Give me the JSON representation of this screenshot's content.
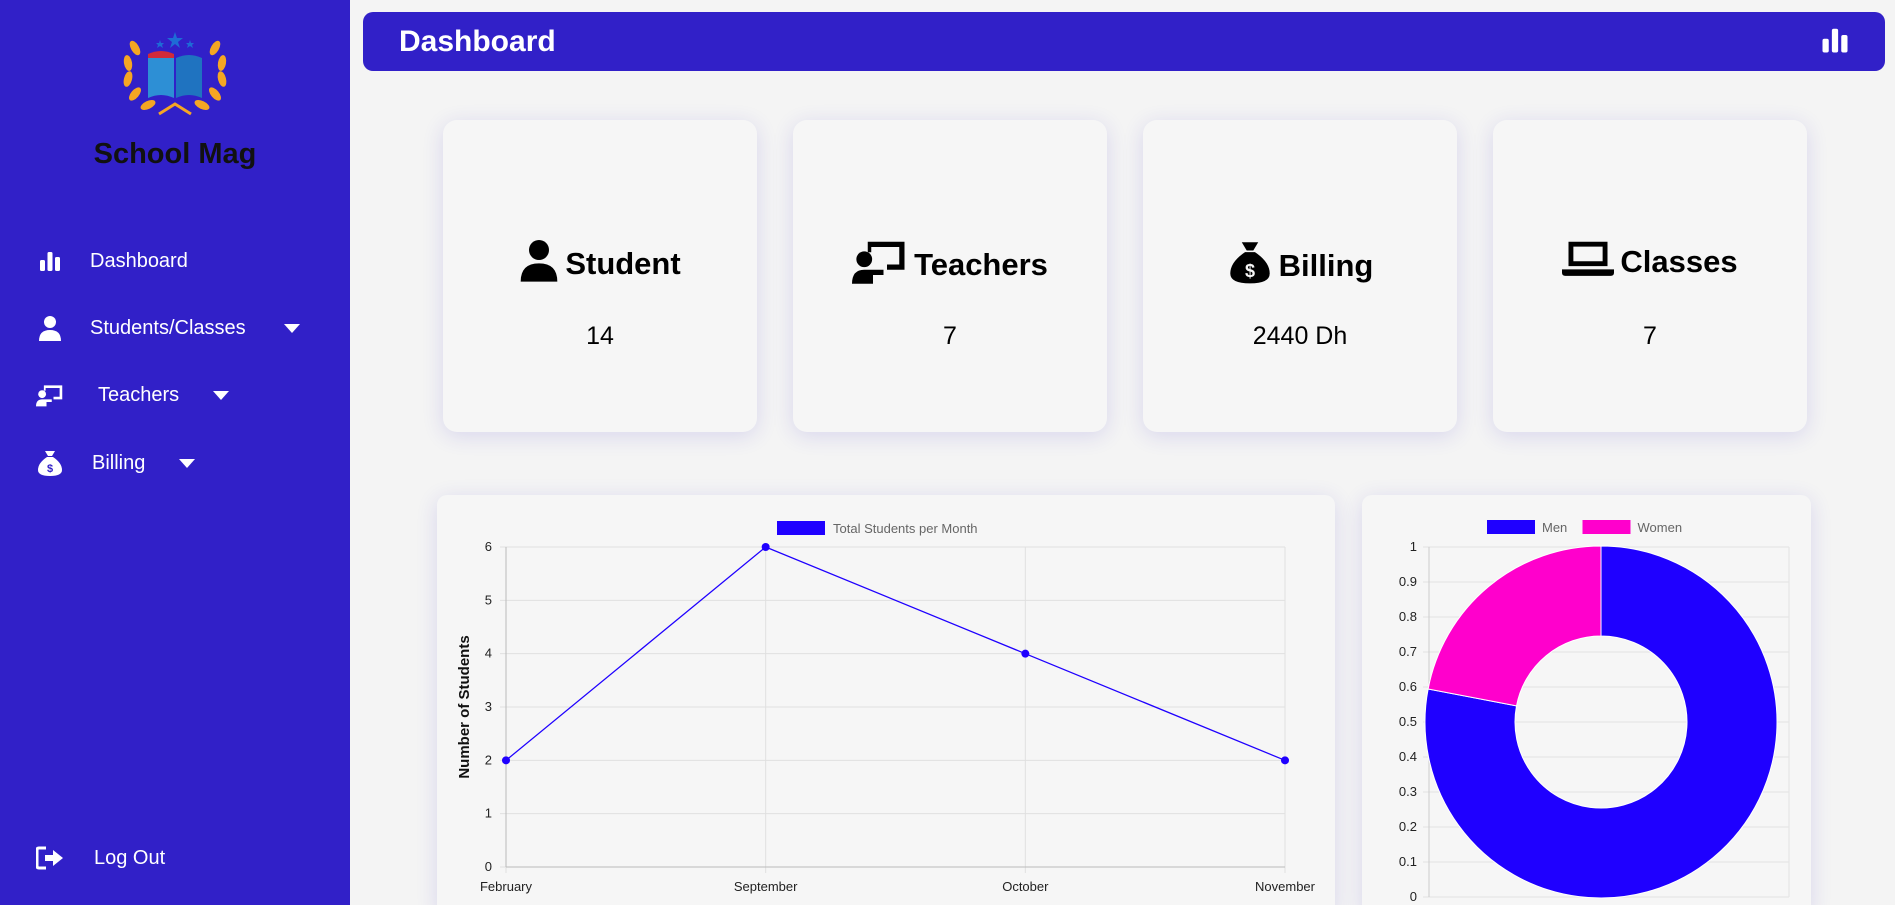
{
  "app": {
    "name": "School Mag"
  },
  "sidebar": {
    "items": [
      {
        "label": "Dashboard",
        "icon": "bar-chart-icon"
      },
      {
        "label": "Students/Classes",
        "icon": "user-icon"
      },
      {
        "label": "Teachers",
        "icon": "chalkboard-teacher-icon"
      },
      {
        "label": "Billing",
        "icon": "money-bag-icon"
      }
    ],
    "logout": {
      "label": "Log Out",
      "icon": "sign-out-icon"
    }
  },
  "header": {
    "title": "Dashboard",
    "icon": "bar-chart-icon"
  },
  "stats": [
    {
      "label": "Student",
      "value": "14",
      "icon": "user-icon"
    },
    {
      "label": "Teachers",
      "value": "7",
      "icon": "chalkboard-teacher-icon"
    },
    {
      "label": "Billing",
      "value": "2440 Dh",
      "icon": "money-bag-icon"
    },
    {
      "label": "Classes",
      "value": "7",
      "icon": "laptop-icon"
    }
  ],
  "colors": {
    "brand": "#3120c8",
    "series_blue": "#1f00ff",
    "series_pink": "#ff00cc"
  },
  "chart_data": [
    {
      "type": "line",
      "categories": [
        "February",
        "September",
        "October",
        "November"
      ],
      "series": [
        {
          "name": "Total Students per Month",
          "values": [
            2,
            6,
            4,
            2
          ],
          "color": "#1f00ff"
        }
      ],
      "ylabel": "Number of Students",
      "ylim": [
        0,
        6
      ],
      "yticks": [
        "0",
        "1",
        "2",
        "3",
        "4",
        "5",
        "6"
      ],
      "grid": true,
      "legend": "top-center"
    },
    {
      "type": "pie",
      "variant": "doughnut",
      "series": [
        {
          "name": "Men",
          "value": 0.78,
          "color": "#1f00ff"
        },
        {
          "name": "Women",
          "value": 0.22,
          "color": "#ff00cc"
        }
      ],
      "ylim": [
        0,
        1
      ],
      "yticks": [
        "0",
        "0.1",
        "0.2",
        "0.3",
        "0.4",
        "0.5",
        "0.6",
        "0.7",
        "0.8",
        "0.9",
        "1"
      ],
      "grid": true,
      "legend": "top-center"
    }
  ]
}
